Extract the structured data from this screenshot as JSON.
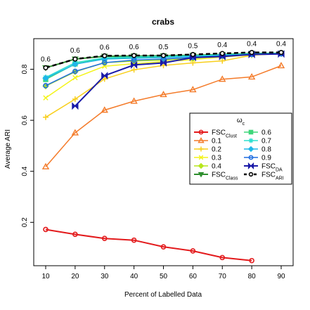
{
  "chart_data": {
    "type": "line",
    "title": "crabs",
    "xlabel": "Percent of Labelled Data",
    "ylabel": "Average ARI",
    "x": [
      10,
      20,
      30,
      40,
      50,
      60,
      70,
      80,
      90
    ],
    "xlim": [
      10,
      90
    ],
    "ylim": [
      0.03,
      0.92
    ],
    "yticks": [
      0.2,
      0.4,
      0.6,
      0.8
    ],
    "yticklabels": [
      "0.2",
      "0.4",
      "0.6",
      "0.8"
    ],
    "grid": false,
    "legend": {
      "title": "ωc",
      "placement": "right"
    },
    "annotations": {
      "x": [
        10,
        20,
        30,
        40,
        50,
        60,
        70,
        80,
        90
      ],
      "labels": [
        "0.6",
        "0.6",
        "0.6",
        "0.6",
        "0.5",
        "0.5",
        "0.4",
        "0.4",
        "0.4"
      ]
    },
    "series": [
      {
        "name": "FSC",
        "sub": "Clust",
        "color": "#e31a1c",
        "marker": "circle",
        "dash": "",
        "width": 2,
        "values": [
          0.172,
          0.153,
          0.137,
          0.13,
          0.104,
          0.088,
          0.062,
          0.05,
          null
        ]
      },
      {
        "name": "0.1",
        "sub": "",
        "color": "#f47b2a",
        "marker": "triangle",
        "dash": "",
        "width": 1.5,
        "values": [
          0.418,
          0.551,
          0.64,
          0.675,
          0.701,
          0.72,
          0.761,
          0.77,
          0.814
        ]
      },
      {
        "name": "0.2",
        "sub": "",
        "color": "#f8cf1c",
        "marker": "plus",
        "dash": "",
        "width": 1.5,
        "values": [
          0.612,
          0.683,
          0.762,
          0.798,
          0.815,
          0.825,
          0.833,
          0.855,
          0.862
        ]
      },
      {
        "name": "0.3",
        "sub": "",
        "color": "#f4f41a",
        "marker": "x",
        "dash": "",
        "width": 1.5,
        "values": [
          0.688,
          0.767,
          0.812,
          0.822,
          0.83,
          0.838,
          0.848,
          0.857,
          0.862
        ]
      },
      {
        "name": "0.4",
        "sub": "",
        "color": "#b6e61b",
        "marker": "diamond",
        "dash": "",
        "width": 1.5,
        "values": [
          0.734,
          0.79,
          0.826,
          0.832,
          0.836,
          0.843,
          0.852,
          0.86,
          0.862
        ]
      },
      {
        "name": "FSC",
        "sub": "Class",
        "color": "#2f8f2f",
        "marker": "triangle-down",
        "dash": "",
        "width": 2,
        "values": [
          0.806,
          0.84,
          0.851,
          0.852,
          0.853,
          0.855,
          0.858,
          0.862,
          0.863
        ]
      },
      {
        "name": "0.6",
        "sub": "",
        "color": "#3ed67a",
        "marker": "square",
        "dash": "",
        "width": 1.5,
        "values": [
          0.76,
          0.821,
          0.842,
          0.846,
          0.848,
          0.852,
          0.856,
          0.86,
          0.862
        ]
      },
      {
        "name": "0.7",
        "sub": "",
        "color": "#2de0cf",
        "marker": "asterisk",
        "dash": "",
        "width": 1.5,
        "values": [
          0.768,
          0.826,
          0.845,
          0.849,
          0.851,
          0.853,
          0.857,
          0.861,
          0.862
        ]
      },
      {
        "name": "0.8",
        "sub": "",
        "color": "#1fb6e8",
        "marker": "diamond",
        "dash": "",
        "width": 1.5,
        "values": [
          0.765,
          0.82,
          0.84,
          0.843,
          0.846,
          0.85,
          0.854,
          0.859,
          0.861
        ]
      },
      {
        "name": "0.9",
        "sub": "",
        "color": "#1e6de0",
        "marker": "circle",
        "dash": "",
        "width": 1.5,
        "values": [
          0.736,
          0.792,
          0.826,
          0.836,
          0.84,
          0.846,
          0.852,
          0.858,
          0.861
        ]
      },
      {
        "name": "FSC",
        "sub": "DA",
        "color": "#1a1aa8",
        "marker": "bowtie",
        "dash": "",
        "width": 2,
        "values": [
          null,
          0.656,
          0.775,
          0.817,
          0.825,
          0.846,
          0.85,
          0.858,
          0.86
        ]
      },
      {
        "name": "FSC",
        "sub": "ARI",
        "color": "#000000",
        "marker": "open-circle",
        "dash": "6,4",
        "width": 2.5,
        "values": [
          0.806,
          0.84,
          0.853,
          0.854,
          0.854,
          0.858,
          0.862,
          0.866,
          0.866
        ]
      }
    ]
  }
}
